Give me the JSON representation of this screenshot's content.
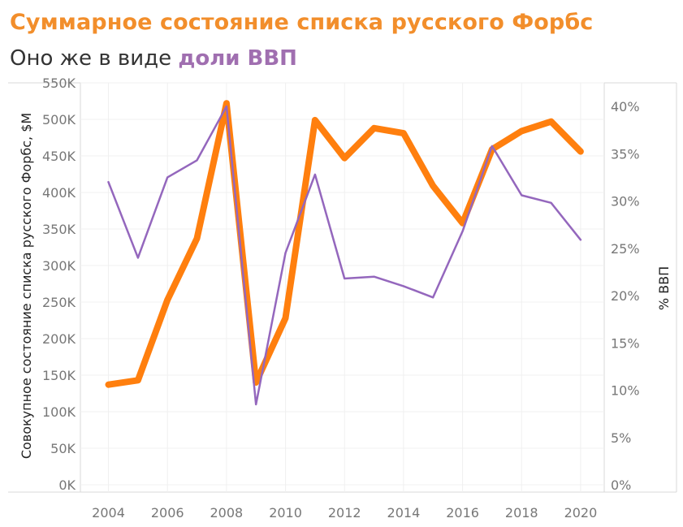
{
  "header": {
    "title": "Суммарное состояние списка русского Форбс",
    "subtitle_prefix": "Оно же в виде ",
    "subtitle_highlight": "доли ВВП"
  },
  "chart_data": {
    "type": "line",
    "x": [
      2004,
      2005,
      2006,
      2007,
      2008,
      2009,
      2010,
      2011,
      2012,
      2013,
      2014,
      2015,
      2016,
      2017,
      2018,
      2019,
      2020
    ],
    "series": [
      {
        "axis": "left",
        "color": "#ff7f0e",
        "values": [
          137,
          143,
          253,
          337,
          522,
          140,
          228,
          499,
          447,
          488,
          481,
          409,
          358,
          459,
          484,
          497,
          456
        ]
      },
      {
        "axis": "right",
        "color": "#9467bd",
        "values": [
          32.0,
          24.0,
          32.5,
          34.3,
          40.0,
          8.5,
          24.5,
          32.8,
          21.8,
          22.0,
          21.0,
          19.8,
          26.8,
          35.8,
          30.6,
          29.8,
          25.9
        ]
      }
    ],
    "xlabel": "",
    "ylabel": "Совокупное состояние списка русского Форбс, $M",
    "y2label": "% ВВП",
    "ylim": [
      0,
      550
    ],
    "y2lim": [
      0,
      42
    ],
    "xticks": [
      2004,
      2006,
      2008,
      2010,
      2012,
      2014,
      2016,
      2018,
      2020
    ],
    "yticks": [
      0,
      50,
      100,
      150,
      200,
      250,
      300,
      350,
      400,
      450,
      500,
      550
    ],
    "ytick_labels": [
      "0K",
      "50K",
      "100K",
      "150K",
      "200K",
      "250K",
      "300K",
      "350K",
      "400K",
      "450K",
      "500K",
      "550K"
    ],
    "y2ticks": [
      0,
      5,
      10,
      15,
      20,
      25,
      30,
      35,
      40
    ],
    "y2tick_labels": [
      "0%",
      "5%",
      "10%",
      "15%",
      "20%",
      "25%",
      "30%",
      "35%",
      "40%"
    ],
    "grid": true
  }
}
